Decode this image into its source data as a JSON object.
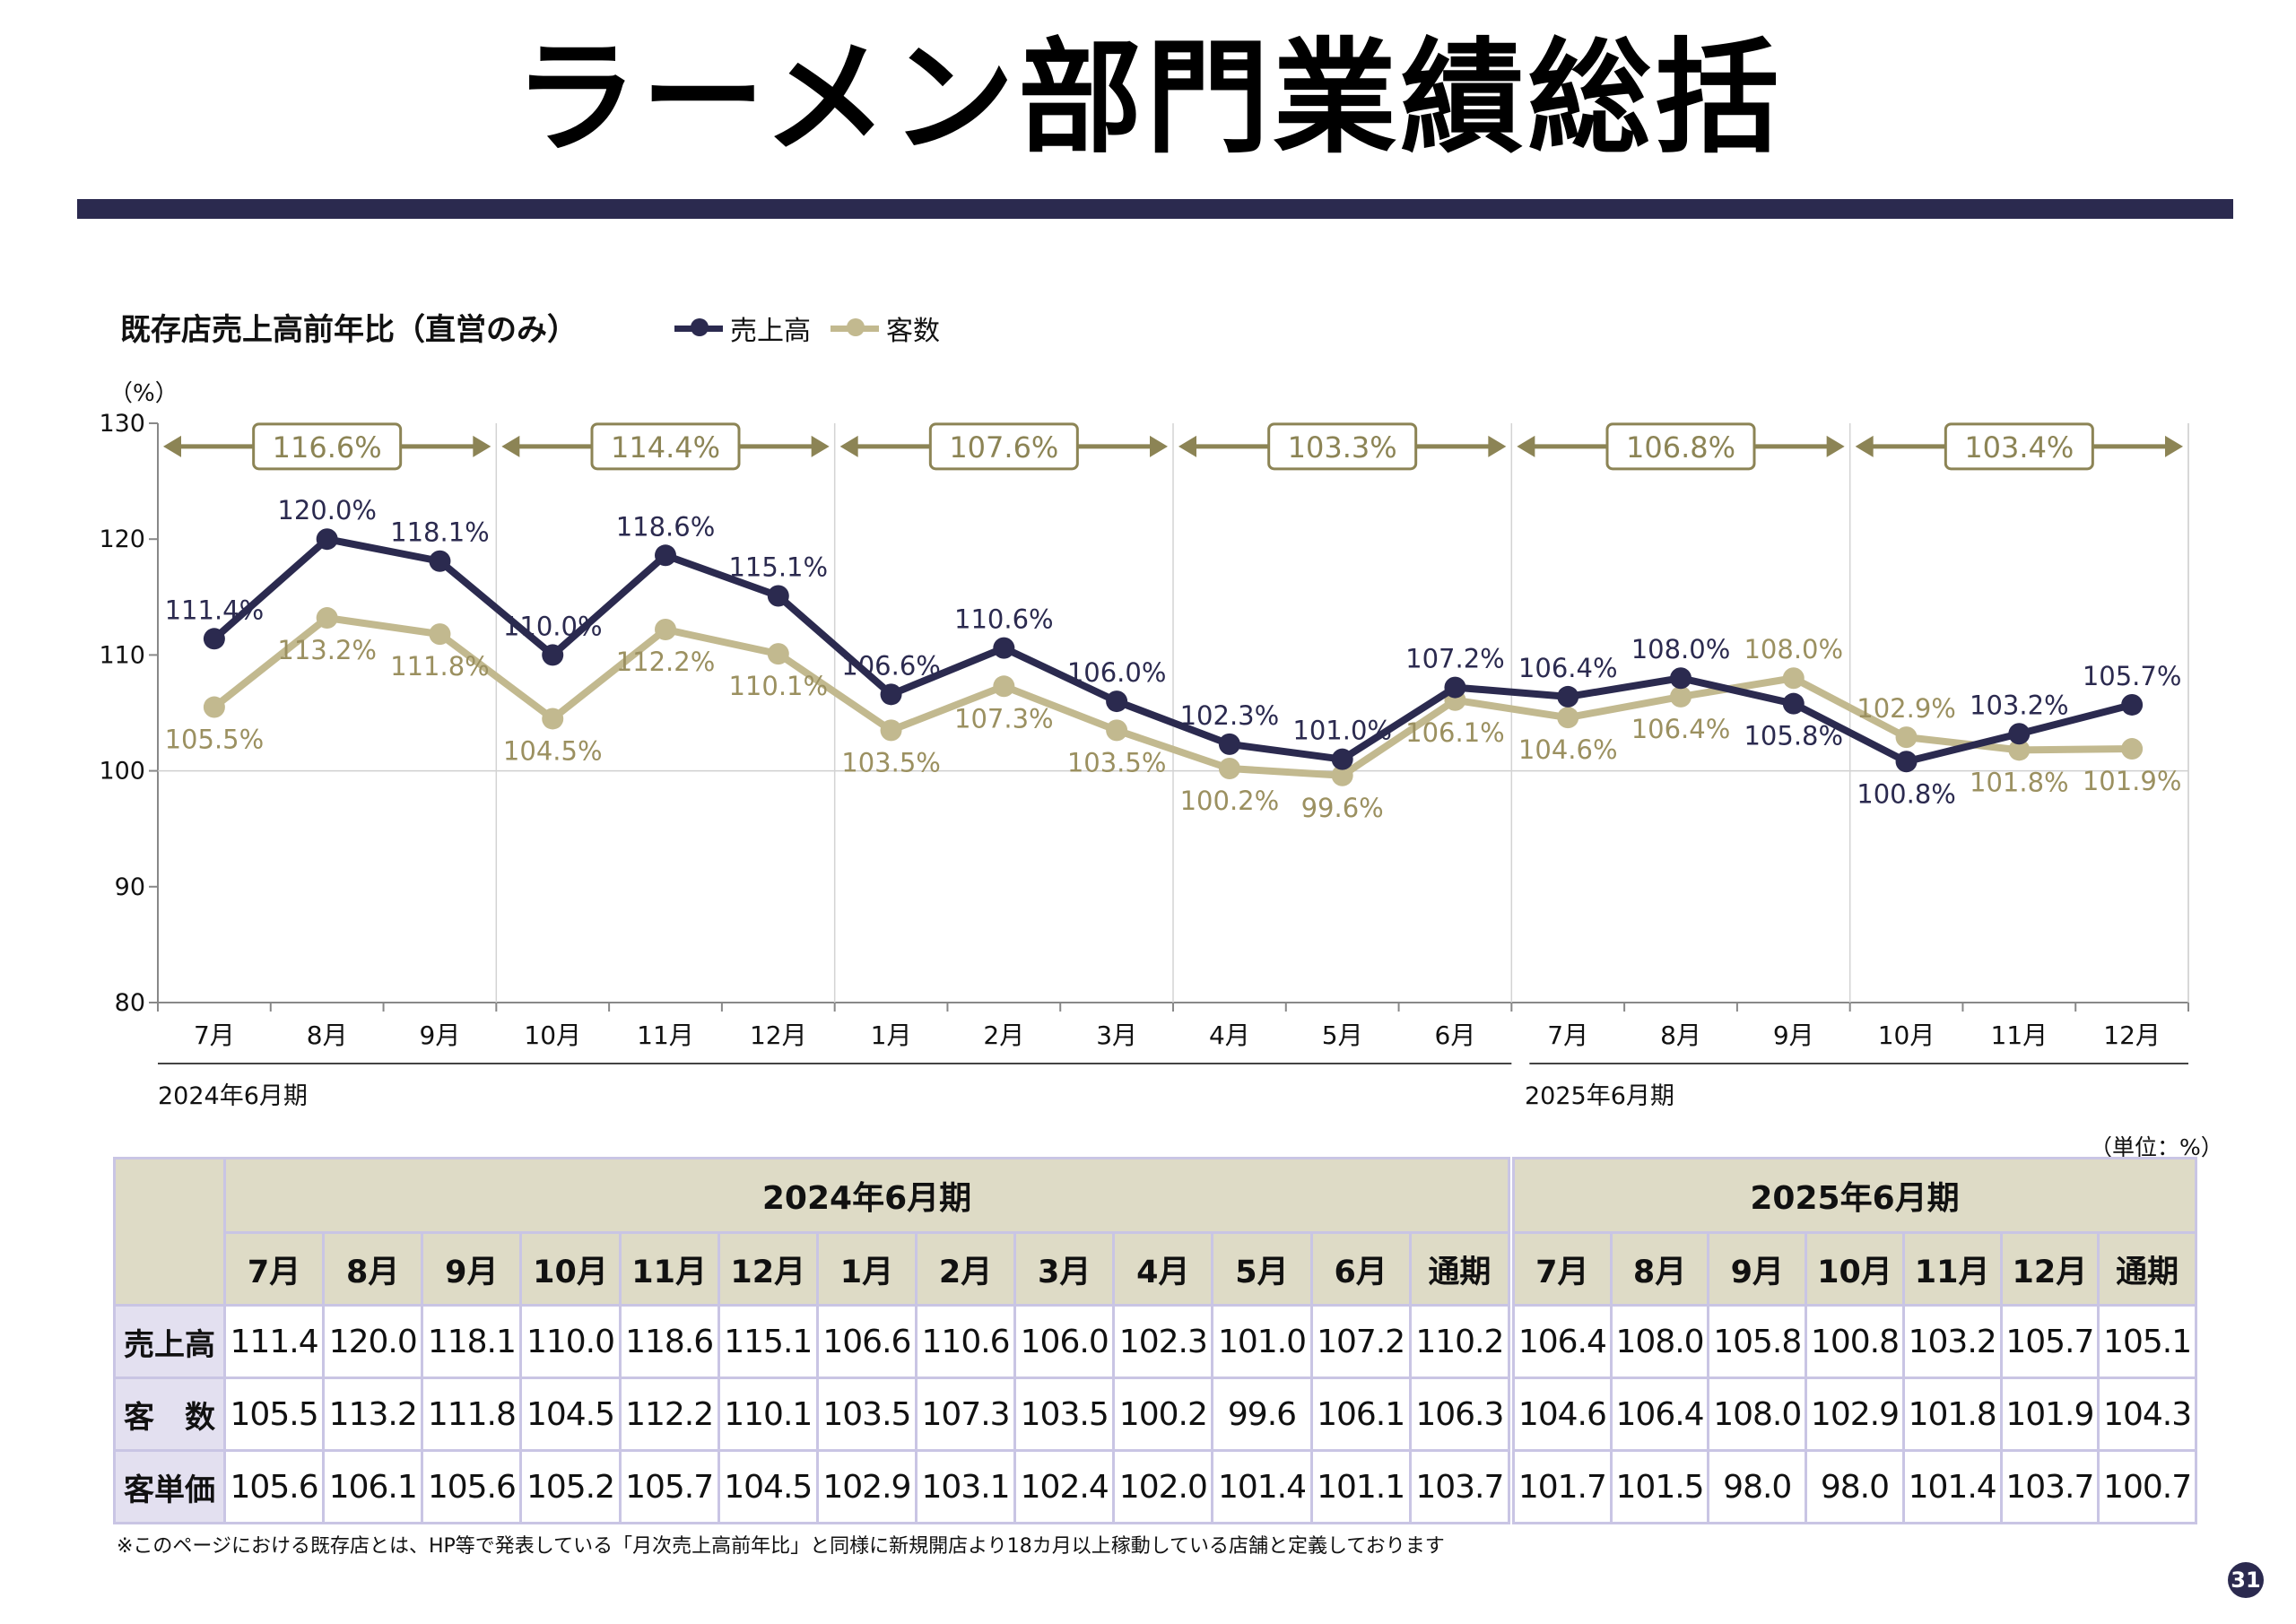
{
  "page": {
    "title": "ラーメン部門業績総括",
    "page_number": "31"
  },
  "chart_title": "既存店売上高前年比（直営のみ）",
  "legend": [
    {
      "label": "売上高",
      "color": "#2b2a4f"
    },
    {
      "label": "客数",
      "color": "#c2b98f"
    }
  ],
  "unit_pct": "（%）",
  "period_labels": {
    "fy2024": "2024年6月期",
    "fy2025": "2025年6月期"
  },
  "unit_note": "（単位：%）",
  "footnote": "※このページにおける既存店とは、HP等で発表している「月次売上高前年比」と同様に新規開店より18カ月以上稼動している店舗と定義しております",
  "chart_data": {
    "type": "line",
    "categories": [
      "7月",
      "8月",
      "9月",
      "10月",
      "11月",
      "12月",
      "1月",
      "2月",
      "3月",
      "4月",
      "5月",
      "6月",
      "7月",
      "8月",
      "9月",
      "10月",
      "11月",
      "12月"
    ],
    "ylim": [
      80,
      130
    ],
    "yticks": [
      80,
      90,
      100,
      110,
      120,
      130
    ],
    "series": [
      {
        "name": "売上高",
        "color": "#2b2a4f",
        "values": [
          111.4,
          120.0,
          118.1,
          110.0,
          118.6,
          115.1,
          106.6,
          110.6,
          106.0,
          102.3,
          101.0,
          107.2,
          106.4,
          108.0,
          105.8,
          100.8,
          103.2,
          105.7
        ],
        "labels": [
          "111.4%",
          "120.0%",
          "118.1%",
          "110.0%",
          "118.6%",
          "115.1%",
          "106.6%",
          "110.6%",
          "106.0%",
          "102.3%",
          "101.0%",
          "107.2%",
          "106.4%",
          "108.0%",
          "105.8%",
          "100.8%",
          "103.2%",
          "105.7%"
        ]
      },
      {
        "name": "客数",
        "color": "#c2b98f",
        "values": [
          105.5,
          113.2,
          111.8,
          104.5,
          112.2,
          110.1,
          103.5,
          107.3,
          103.5,
          100.2,
          99.6,
          106.1,
          104.6,
          106.4,
          108.0,
          102.9,
          101.8,
          101.9
        ],
        "labels": [
          "105.5%",
          "113.2%",
          "111.8%",
          "104.5%",
          "112.2%",
          "110.1%",
          "103.5%",
          "107.3%",
          "103.5%",
          "100.2%",
          "99.6%",
          "106.1%",
          "104.6%",
          "106.4%",
          "108.0%",
          "102.9%",
          "101.8%",
          "101.9%"
        ]
      }
    ],
    "quarter_summaries": [
      "116.6%",
      "114.4%",
      "107.6%",
      "103.3%",
      "106.8%",
      "103.4%"
    ],
    "accent_color": "#8c8455"
  },
  "table": {
    "groups": [
      {
        "label": "2024年6月期",
        "months": [
          "7月",
          "8月",
          "9月",
          "10月",
          "11月",
          "12月",
          "1月",
          "2月",
          "3月",
          "4月",
          "5月",
          "6月",
          "通期"
        ]
      },
      {
        "label": "2025年6月期",
        "months": [
          "7月",
          "8月",
          "9月",
          "10月",
          "11月",
          "12月",
          "通期"
        ]
      }
    ],
    "rows": [
      {
        "label": "売上高",
        "fy2024": [
          "111.4",
          "120.0",
          "118.1",
          "110.0",
          "118.6",
          "115.1",
          "106.6",
          "110.6",
          "106.0",
          "102.3",
          "101.0",
          "107.2",
          "110.2"
        ],
        "fy2025": [
          "106.4",
          "108.0",
          "105.8",
          "100.8",
          "103.2",
          "105.7",
          "105.1"
        ]
      },
      {
        "label": "客　数",
        "fy2024": [
          "105.5",
          "113.2",
          "111.8",
          "104.5",
          "112.2",
          "110.1",
          "103.5",
          "107.3",
          "103.5",
          "100.2",
          "99.6",
          "106.1",
          "106.3"
        ],
        "fy2025": [
          "104.6",
          "106.4",
          "108.0",
          "102.9",
          "101.8",
          "101.9",
          "104.3"
        ]
      },
      {
        "label": "客単価",
        "fy2024": [
          "105.6",
          "106.1",
          "105.6",
          "105.2",
          "105.7",
          "104.5",
          "102.9",
          "103.1",
          "102.4",
          "102.0",
          "101.4",
          "101.1",
          "103.7"
        ],
        "fy2025": [
          "101.7",
          "101.5",
          "98.0",
          "98.0",
          "101.4",
          "103.7",
          "100.7"
        ]
      }
    ]
  }
}
